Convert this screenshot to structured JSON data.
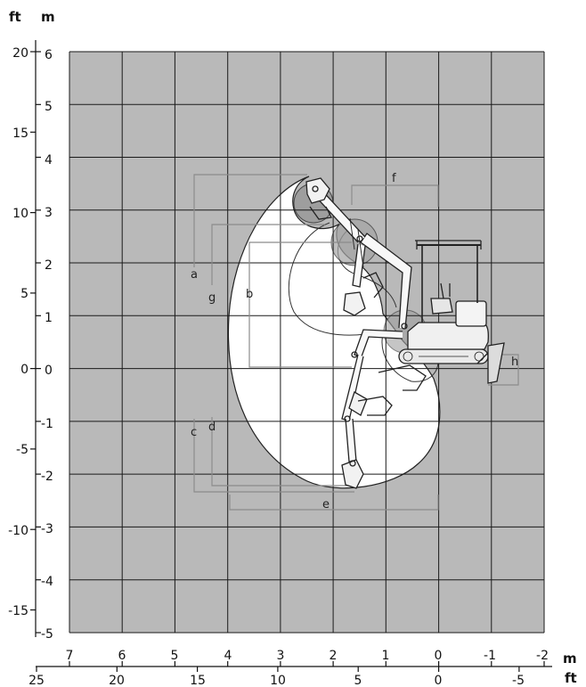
{
  "units": {
    "left_ft": "ft",
    "left_m": "m",
    "bottom_m": "m",
    "bottom_ft": "ft"
  },
  "y_axis": {
    "m_labels": [
      "6",
      "5",
      "4",
      "3",
      "2",
      "1",
      "0",
      "-1",
      "-2",
      "-3",
      "-4",
      "-5"
    ],
    "ft_labels": [
      "20",
      "15",
      "10",
      "5",
      "0",
      "-5",
      "-10",
      "-15"
    ]
  },
  "x_axis": {
    "m_labels": [
      "7",
      "6",
      "5",
      "4",
      "3",
      "2",
      "1",
      "0",
      "-1",
      "-2"
    ],
    "ft_labels": [
      "25",
      "20",
      "15",
      "10",
      "5",
      "0",
      "-5"
    ]
  },
  "dimensions": {
    "a": "a",
    "b": "b",
    "c": "c",
    "d": "d",
    "e": "e",
    "f": "f",
    "g": "g",
    "h": "h"
  },
  "colors": {
    "grid_background": "#b9b9b9",
    "grid_line": "#1a1a1a",
    "envelope_fill": "#ffffff",
    "dimension_line": "#8c8c8c",
    "machine_line": "#222222"
  }
}
